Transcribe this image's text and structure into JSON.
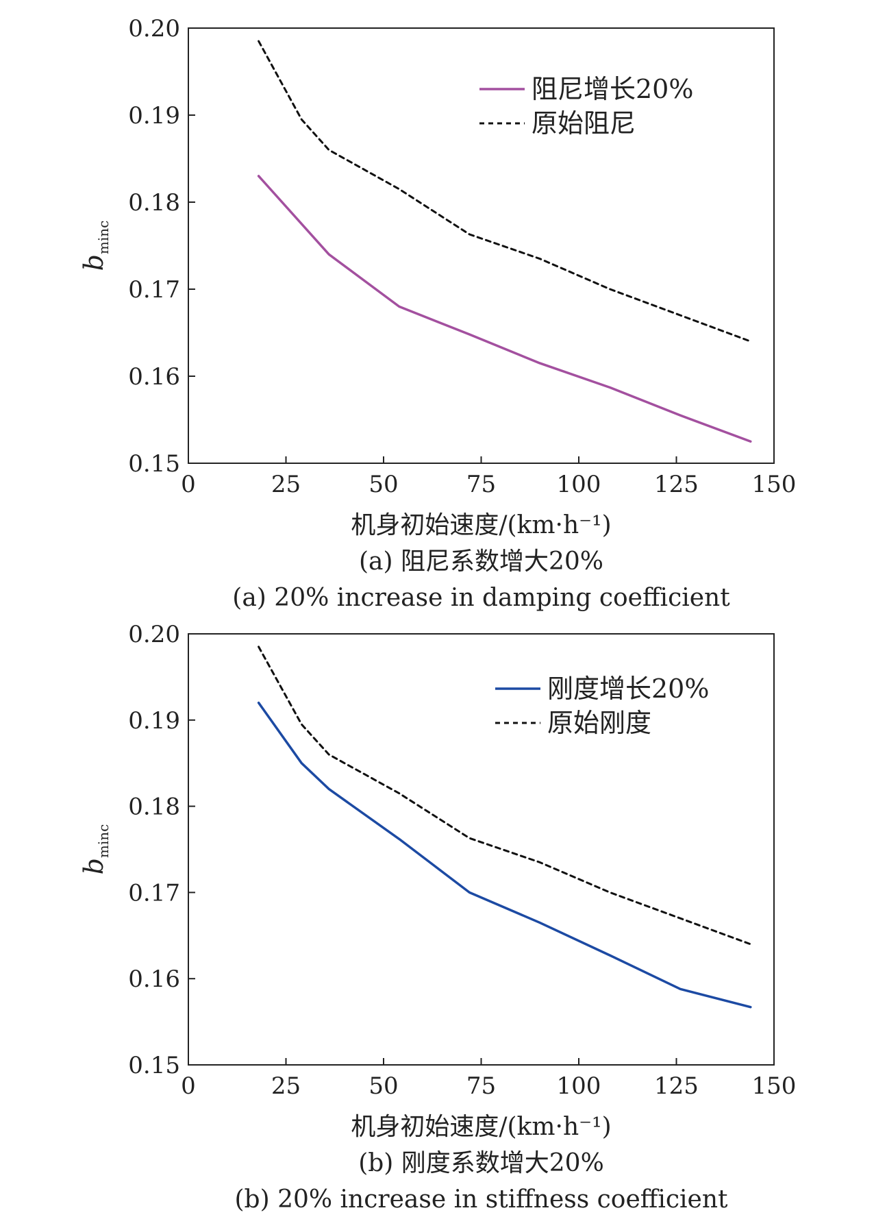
{
  "colors": {
    "damping": "#a3509f",
    "stiffness": "#1c4aa3",
    "original": "#111111"
  },
  "chart_data": [
    {
      "type": "line",
      "xlabel": "机身初始速度/(km·h⁻¹)",
      "ylabel_main": "b",
      "ylabel_sub": "minc",
      "xlim": [
        0,
        150
      ],
      "ylim": [
        0.15,
        0.2
      ],
      "xticks": [
        "0",
        "25",
        "50",
        "75",
        "100",
        "125",
        "150"
      ],
      "yticks": [
        "0.15",
        "0.16",
        "0.17",
        "0.18",
        "0.19",
        "0.20"
      ],
      "legend_position": "top-right",
      "caption_cn": "(a) 阻尼系数增大20%",
      "caption_en": "(a) 20% increase in damping coefficient",
      "series": [
        {
          "name": "阻尼增长20%",
          "style": "solid",
          "color_key": "damping",
          "x": [
            18,
            36,
            54,
            72,
            90,
            108,
            126,
            144
          ],
          "y": [
            0.183,
            0.174,
            0.168,
            0.1648,
            0.1615,
            0.1587,
            0.1555,
            0.1525
          ]
        },
        {
          "name": "原始阻尼",
          "style": "dashed",
          "color_key": "original",
          "x": [
            18,
            29,
            36,
            54,
            72,
            90,
            108,
            126,
            144
          ],
          "y": [
            0.1985,
            0.1895,
            0.186,
            0.1815,
            0.1763,
            0.1735,
            0.17,
            0.167,
            0.164
          ]
        }
      ]
    },
    {
      "type": "line",
      "xlabel": "机身初始速度/(km·h⁻¹)",
      "ylabel_main": "b",
      "ylabel_sub": "minc",
      "xlim": [
        0,
        150
      ],
      "ylim": [
        0.15,
        0.2
      ],
      "xticks": [
        "0",
        "25",
        "50",
        "75",
        "100",
        "125",
        "150"
      ],
      "yticks": [
        "0.15",
        "0.16",
        "0.17",
        "0.18",
        "0.19",
        "0.20"
      ],
      "legend_position": "top-right",
      "caption_cn": "(b) 刚度系数增大20%",
      "caption_en": "(b) 20% increase in stiffness coefficient",
      "series": [
        {
          "name": "刚度增长20%",
          "style": "solid",
          "color_key": "stiffness",
          "x": [
            18,
            29,
            36,
            54,
            72,
            90,
            108,
            126,
            144
          ],
          "y": [
            0.192,
            0.185,
            0.182,
            0.1762,
            0.17,
            0.1665,
            0.1627,
            0.1588,
            0.1567
          ]
        },
        {
          "name": "原始刚度",
          "style": "dashed",
          "color_key": "original",
          "x": [
            18,
            29,
            36,
            54,
            72,
            90,
            108,
            126,
            144
          ],
          "y": [
            0.1985,
            0.1895,
            0.186,
            0.1815,
            0.1763,
            0.1735,
            0.17,
            0.167,
            0.164
          ]
        }
      ]
    }
  ]
}
